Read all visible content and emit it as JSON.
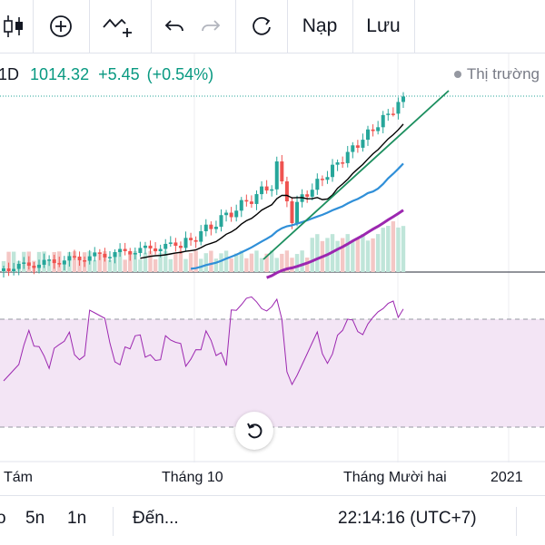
{
  "toolbar": {
    "items": [
      {
        "name": "candles-icon"
      },
      {
        "name": "add-indicator-icon"
      },
      {
        "name": "compare-icon"
      },
      {
        "name": "undo-icon"
      },
      {
        "name": "redo-icon"
      },
      {
        "name": "refresh-icon"
      }
    ],
    "load_label": "Nạp",
    "save_label": "Lưu"
  },
  "legend": {
    "interval": "1D",
    "price": "1014.32",
    "change": "+5.45",
    "change_pct": "(+0.54%)",
    "market_status": "Thị trường"
  },
  "xaxis": {
    "labels": [
      "Tám",
      "Tháng 10",
      "Tháng Mười hai",
      "2021"
    ]
  },
  "bottombar": {
    "range_partial": "o",
    "range_5n": "5n",
    "range_1n": "1n",
    "goto_label": "Đến...",
    "clock": "22:14:16 (UTC+7)"
  },
  "colors": {
    "up": "#26a69a",
    "down": "#ef5350",
    "ma_fast": "#000000",
    "ma_mid": "#2f8fd8",
    "ma_slow": "#9c27b0",
    "trendline": "#1c8f5f",
    "rsi_line": "#9c27b0",
    "rsi_band": "#f3e5f5"
  },
  "chart_data": {
    "type": "candlestick",
    "last_close": 1014.32,
    "rsi_band": [
      30,
      70
    ]
  }
}
